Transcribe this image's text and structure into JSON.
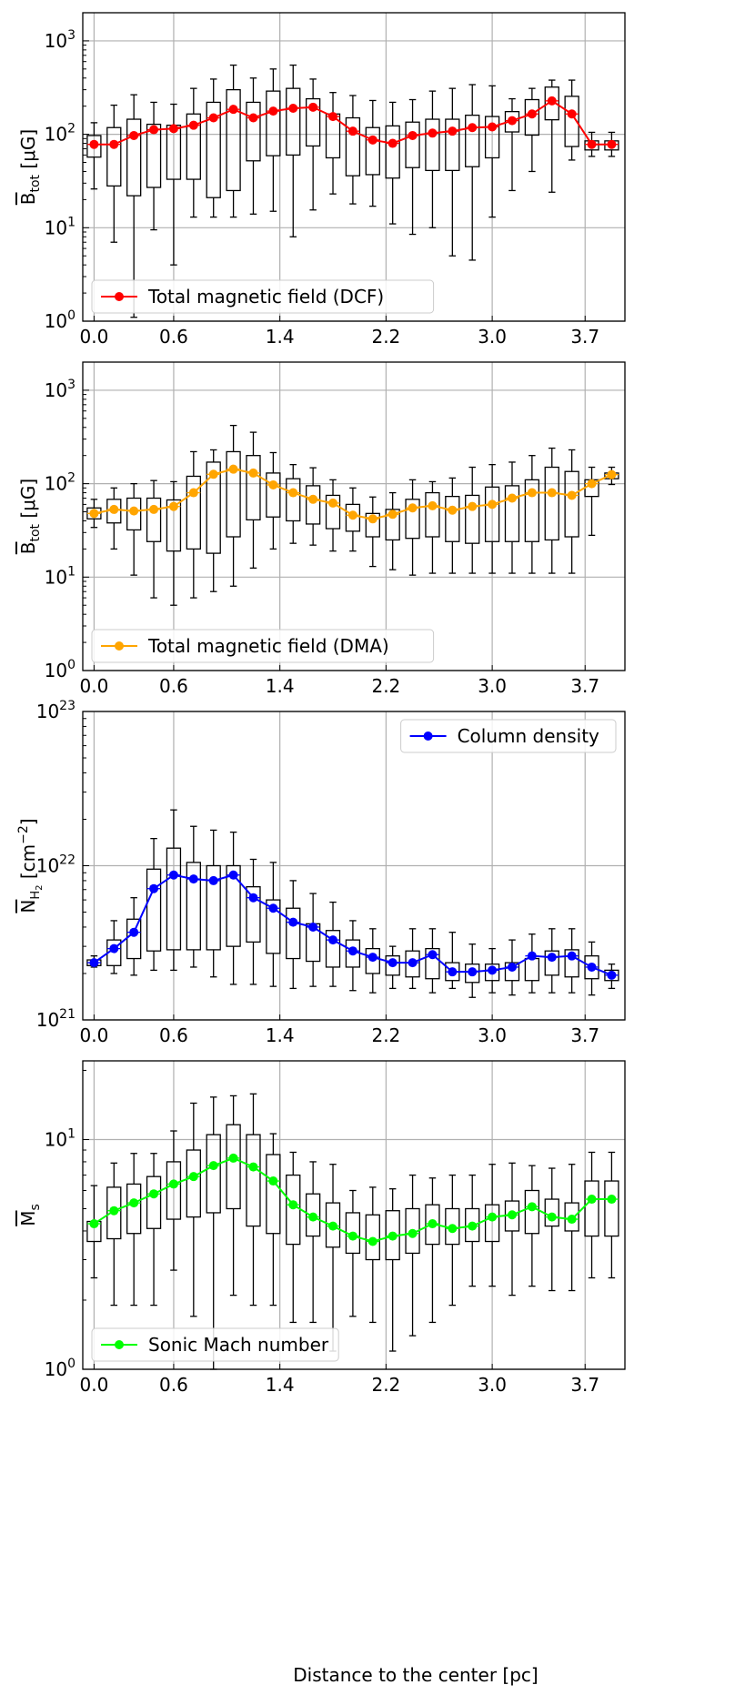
{
  "figure": {
    "xlabel": "Distance to the center [pc]"
  },
  "chart_data": [
    {
      "type": "box",
      "ylabel": "B_tot [μG]",
      "yscale": "log",
      "ylim": [
        1,
        2000
      ],
      "ytick_labels": [
        "10^0",
        "10^1",
        "10^2",
        "10^3"
      ],
      "x_tick_labels": [
        "0.0",
        "0.6",
        "1.4",
        "2.2",
        "3.0",
        "3.7"
      ],
      "grid": true,
      "legend_position": "bottom-left",
      "series": [
        {
          "name": "Total magnetic field (DCF)",
          "color": "#ff0000",
          "x": [
            0.0,
            0.15,
            0.3,
            0.45,
            0.6,
            0.75,
            0.9,
            1.05,
            1.2,
            1.35,
            1.5,
            1.65,
            1.8,
            1.95,
            2.1,
            2.25,
            2.4,
            2.55,
            2.7,
            2.85,
            3.0,
            3.15,
            3.3,
            3.45,
            3.6,
            3.75,
            3.9
          ],
          "median": [
            78,
            78,
            97,
            112,
            115,
            125,
            150,
            185,
            150,
            177,
            190,
            195,
            155,
            108,
            87,
            80,
            97,
            103,
            108,
            118,
            120,
            140,
            165,
            228,
            165,
            78,
            78
          ],
          "q1": [
            57,
            28,
            22,
            27,
            33,
            33,
            21,
            25,
            52,
            59,
            60,
            75,
            56,
            36,
            37,
            34,
            44,
            41,
            41,
            45,
            56,
            106,
            98,
            143,
            74,
            68,
            68
          ],
          "q3": [
            97,
            118,
            145,
            128,
            125,
            165,
            220,
            300,
            220,
            290,
            310,
            240,
            165,
            150,
            118,
            123,
            135,
            145,
            145,
            160,
            155,
            175,
            235,
            320,
            255,
            85,
            85
          ],
          "whisker_low": [
            26,
            7,
            1.1,
            9.5,
            4,
            13,
            13,
            13,
            14,
            15,
            8,
            15.5,
            23,
            18,
            17,
            11,
            8.5,
            10,
            5,
            4.5,
            13,
            25,
            40,
            24,
            53,
            58,
            58
          ],
          "whisker_high": [
            133,
            205,
            265,
            220,
            210,
            310,
            390,
            550,
            400,
            500,
            550,
            390,
            280,
            260,
            230,
            220,
            235,
            290,
            310,
            340,
            330,
            240,
            310,
            380,
            380,
            105,
            105
          ]
        }
      ]
    },
    {
      "type": "box",
      "ylabel": "B_tot [μG]",
      "yscale": "log",
      "ylim": [
        1,
        2000
      ],
      "ytick_labels": [
        "10^0",
        "10^1",
        "10^2",
        "10^3"
      ],
      "x_tick_labels": [
        "0.0",
        "0.6",
        "1.4",
        "2.2",
        "3.0",
        "3.7"
      ],
      "grid": true,
      "legend_position": "bottom-left",
      "series": [
        {
          "name": "Total magnetic field (DMA)",
          "color": "#ffa500",
          "x": [
            0.0,
            0.15,
            0.3,
            0.45,
            0.6,
            0.75,
            0.9,
            1.05,
            1.2,
            1.35,
            1.5,
            1.65,
            1.8,
            1.95,
            2.1,
            2.25,
            2.4,
            2.55,
            2.7,
            2.85,
            3.0,
            3.15,
            3.3,
            3.45,
            3.6,
            3.75,
            3.9
          ],
          "median": [
            48,
            53,
            51,
            53,
            57,
            80,
            126,
            143,
            130,
            97,
            80,
            68,
            62,
            46,
            42,
            47,
            55,
            58,
            52,
            57,
            60,
            70,
            80,
            80,
            75,
            100,
            125
          ],
          "q1": [
            42,
            38,
            32,
            24,
            19,
            20,
            18,
            27,
            41,
            44,
            40,
            37,
            33,
            31,
            27,
            25,
            26,
            27,
            24,
            23,
            24,
            24,
            24,
            25,
            27,
            73,
            113
          ],
          "q3": [
            55,
            68,
            70,
            70,
            67,
            120,
            170,
            220,
            200,
            130,
            113,
            95,
            75,
            60,
            48,
            53,
            68,
            80,
            73,
            75,
            92,
            95,
            110,
            150,
            135,
            110,
            130
          ],
          "whisker_low": [
            34,
            20,
            10.5,
            6,
            5,
            6,
            7,
            8,
            12.5,
            20,
            23,
            22,
            19,
            19,
            13,
            12,
            10.5,
            11,
            11,
            11,
            11,
            11,
            11,
            11,
            11,
            28,
            98
          ],
          "whisker_high": [
            68,
            90,
            100,
            108,
            105,
            220,
            230,
            420,
            355,
            215,
            160,
            148,
            110,
            90,
            72,
            80,
            110,
            105,
            115,
            150,
            160,
            170,
            200,
            240,
            230,
            150,
            150
          ]
        }
      ]
    },
    {
      "type": "box",
      "ylabel": "N_H2 [cm^-2]",
      "yscale": "log",
      "ylim": [
        1e+21,
        1e+23
      ],
      "ytick_labels": [
        "10^21",
        "10^22",
        "10^23"
      ],
      "x_tick_labels": [
        "0.0",
        "0.6",
        "1.4",
        "2.2",
        "3.0",
        "3.7"
      ],
      "grid": true,
      "legend_position": "top-right",
      "series": [
        {
          "name": "Column density",
          "color": "#0000ff",
          "x": [
            0.0,
            0.15,
            0.3,
            0.45,
            0.6,
            0.75,
            0.9,
            1.05,
            1.2,
            1.35,
            1.5,
            1.65,
            1.8,
            1.95,
            2.1,
            2.25,
            2.4,
            2.55,
            2.7,
            2.85,
            3.0,
            3.15,
            3.3,
            3.45,
            3.6,
            3.75,
            3.9
          ],
          "median": [
            2.35e+21,
            2.9e+21,
            3.7e+21,
            7.1e+21,
            8.7e+21,
            8.2e+21,
            8e+21,
            8.7e+21,
            6.2e+21,
            5.3e+21,
            4.3e+21,
            4e+21,
            3.3e+21,
            2.8e+21,
            2.55e+21,
            2.35e+21,
            2.35e+21,
            2.65e+21,
            2.05e+21,
            2.05e+21,
            2.1e+21,
            2.2e+21,
            2.6e+21,
            2.55e+21,
            2.6e+21,
            2.2e+21,
            1.95e+21
          ],
          "q1": [
            2.25e+21,
            2.25e+21,
            2.5e+21,
            2.8e+21,
            2.85e+21,
            2.85e+21,
            2.85e+21,
            3e+21,
            3.2e+21,
            2.7e+21,
            2.5e+21,
            2.4e+21,
            2.2e+21,
            2.2e+21,
            2e+21,
            1.95e+21,
            1.9e+21,
            1.85e+21,
            1.8e+21,
            1.75e+21,
            1.8e+21,
            1.8e+21,
            1.8e+21,
            1.95e+21,
            1.9e+21,
            1.85e+21,
            1.8e+21
          ],
          "q3": [
            2.45e+21,
            3.3e+21,
            4.5e+21,
            9.5e+21,
            1.3e+22,
            1.05e+22,
            1e+22,
            1e+22,
            7.3e+21,
            6e+21,
            5.3e+21,
            4.2e+21,
            3.8e+21,
            3.3e+21,
            2.9e+21,
            2.6e+21,
            2.8e+21,
            2.9e+21,
            2.35e+21,
            2.3e+21,
            2.3e+21,
            2.35e+21,
            2.5e+21,
            2.8e+21,
            2.85e+21,
            2.6e+21,
            2.1e+21
          ],
          "whisker_low": [
            2.2e+21,
            2e+21,
            1.95e+21,
            2.1e+21,
            2.1e+21,
            2.2e+21,
            1.9e+21,
            1.7e+21,
            1.7e+21,
            1.65e+21,
            1.6e+21,
            1.65e+21,
            1.65e+21,
            1.55e+21,
            1.5e+21,
            1.6e+21,
            1.6e+21,
            1.5e+21,
            1.6e+21,
            1.4e+21,
            1.5e+21,
            1.45e+21,
            1.5e+21,
            1.5e+21,
            1.5e+21,
            1.45e+21,
            1.6e+21
          ],
          "whisker_high": [
            2.6e+21,
            4.4e+21,
            6.2e+21,
            1.5e+22,
            2.3e+22,
            1.8e+22,
            1.7e+22,
            1.65e+22,
            1.1e+22,
            1.05e+22,
            8e+21,
            6.6e+21,
            5.8e+21,
            4.4e+21,
            3.9e+21,
            3e+21,
            3.9e+21,
            3.9e+21,
            3.7e+21,
            3.1e+21,
            2.9e+21,
            3.3e+21,
            3.6e+21,
            3.9e+21,
            3.9e+21,
            3.2e+21,
            2.3e+21
          ]
        }
      ]
    },
    {
      "type": "box",
      "ylabel": "M_s",
      "yscale": "log",
      "ylim": [
        1,
        22
      ],
      "ytick_labels": [
        "10^0",
        "10^1"
      ],
      "x_tick_labels": [
        "0.0",
        "0.6",
        "1.4",
        "2.2",
        "3.0",
        "3.7"
      ],
      "grid": true,
      "legend_position": "bottom-left",
      "series": [
        {
          "name": "Sonic Mach number",
          "color": "#00ff00",
          "x": [
            0.0,
            0.15,
            0.3,
            0.45,
            0.6,
            0.75,
            0.9,
            1.05,
            1.2,
            1.35,
            1.5,
            1.65,
            1.8,
            1.95,
            2.1,
            2.25,
            2.4,
            2.55,
            2.7,
            2.85,
            3.0,
            3.15,
            3.3,
            3.45,
            3.6,
            3.75,
            3.9
          ],
          "median": [
            4.3,
            4.9,
            5.3,
            5.8,
            6.4,
            6.9,
            7.7,
            8.3,
            7.6,
            6.6,
            5.2,
            4.6,
            4.2,
            3.8,
            3.6,
            3.8,
            3.9,
            4.3,
            4.1,
            4.2,
            4.6,
            4.7,
            5.1,
            4.6,
            4.5,
            5.5,
            5.5
          ],
          "q1": [
            3.6,
            3.7,
            3.9,
            4.1,
            4.5,
            4.6,
            4.8,
            5.0,
            4.2,
            3.9,
            3.5,
            3.8,
            3.4,
            3.2,
            3.0,
            3.0,
            3.2,
            3.5,
            3.5,
            3.6,
            3.6,
            4.0,
            3.9,
            4.2,
            4.0,
            3.8,
            3.8
          ],
          "q3": [
            4.4,
            6.2,
            6.4,
            6.9,
            8.0,
            9.0,
            10.5,
            11.6,
            10.5,
            8.6,
            7.0,
            5.8,
            5.3,
            4.8,
            4.7,
            4.9,
            5.0,
            5.2,
            5.0,
            5.0,
            5.2,
            5.4,
            6.0,
            5.5,
            5.3,
            6.6,
            6.6
          ],
          "whisker_low": [
            2.5,
            1.9,
            1.9,
            1.9,
            2.7,
            1.7,
            1.0,
            2.1,
            1.9,
            1.9,
            1.6,
            1.6,
            1.2,
            1.7,
            1.6,
            1.2,
            1.4,
            1.6,
            1.9,
            2.3,
            2.3,
            2.1,
            2.3,
            2.2,
            2.2,
            2.5,
            2.5
          ],
          "whisker_high": [
            6.3,
            7.9,
            8.7,
            8.7,
            10.9,
            14.4,
            15.3,
            15.5,
            15.8,
            10.6,
            8.8,
            8.0,
            7.8,
            6.0,
            6.2,
            6.1,
            7.0,
            6.8,
            7.0,
            7.0,
            7.8,
            7.9,
            7.7,
            7.5,
            7.8,
            8.8,
            8.8
          ]
        }
      ]
    }
  ]
}
